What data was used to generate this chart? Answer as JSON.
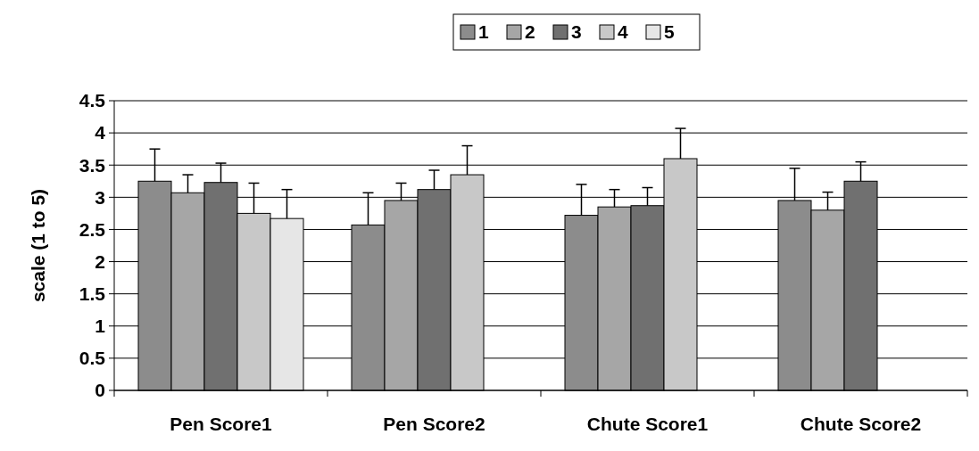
{
  "chart_data": {
    "type": "bar",
    "ylabel": "scale (1 to 5)",
    "categories": [
      "Pen Score1",
      "Pen Score2",
      "Chute Score1",
      "Chute Score2"
    ],
    "series": [
      {
        "name": "1",
        "color": "#8c8c8c",
        "values": [
          3.25,
          2.57,
          2.72,
          2.95
        ],
        "errors": [
          [
            3.25,
            3.75
          ],
          [
            2.57,
            3.07
          ],
          [
            2.72,
            3.2
          ],
          [
            2.95,
            3.45
          ]
        ]
      },
      {
        "name": "2",
        "color": "#a6a6a6",
        "values": [
          3.07,
          2.95,
          2.85,
          2.8
        ],
        "errors": [
          [
            3.07,
            3.35
          ],
          [
            2.95,
            3.22
          ],
          [
            2.85,
            3.12
          ],
          [
            2.8,
            3.08
          ]
        ]
      },
      {
        "name": "3",
        "color": "#707070",
        "values": [
          3.23,
          3.12,
          2.87,
          3.25
        ],
        "errors": [
          [
            3.23,
            3.53
          ],
          [
            3.12,
            3.42
          ],
          [
            2.87,
            3.15
          ],
          [
            3.25,
            3.55
          ]
        ]
      },
      {
        "name": "4",
        "color": "#c8c8c8",
        "values": [
          2.75,
          3.35,
          3.6,
          null
        ],
        "errors": [
          [
            2.75,
            3.22
          ],
          [
            3.35,
            3.8
          ],
          [
            3.6,
            4.07
          ],
          null
        ]
      },
      {
        "name": "5",
        "color": "#e6e6e6",
        "values": [
          2.67,
          null,
          null,
          null
        ],
        "errors": [
          [
            2.67,
            3.12
          ],
          null,
          null,
          null
        ]
      }
    ],
    "ylim": [
      0,
      4.5
    ],
    "yticks": [
      0,
      0.5,
      1,
      1.5,
      2,
      2.5,
      3,
      3.5,
      4,
      4.5
    ],
    "grid": "y",
    "legend": "top"
  }
}
